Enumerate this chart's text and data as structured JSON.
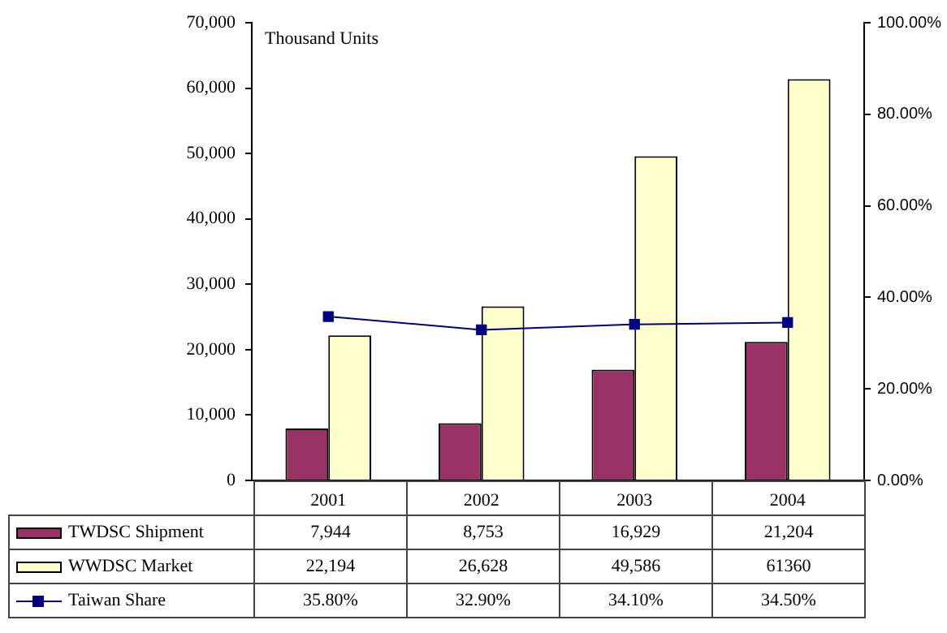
{
  "chart_data": {
    "type": "bar",
    "annotations": [
      "Thousand Units"
    ],
    "categories": [
      "2001",
      "2002",
      "2003",
      "2004"
    ],
    "series": [
      {
        "name": "TWDSC Shipment",
        "color": "#993366",
        "values": [
          7944,
          8753,
          16929,
          21204
        ],
        "value_labels": [
          "7,944",
          "8,753",
          "16,929",
          "21,204"
        ]
      },
      {
        "name": "WWDSC Market",
        "color": "#ffffcc",
        "values": [
          22194,
          26628,
          49586,
          61360
        ],
        "value_labels": [
          "22,194",
          "26,628",
          "49,586",
          "61360"
        ]
      },
      {
        "name": "Taiwan Share",
        "type": "line",
        "axis": "y2",
        "color": "#000080",
        "marker": "square",
        "values": [
          35.8,
          32.9,
          34.1,
          34.5
        ],
        "value_labels": [
          "35.80%",
          "32.90%",
          "34.10%",
          "34.50%"
        ]
      }
    ],
    "ylim": [
      0,
      70000
    ],
    "yticks": [
      0,
      {
        "value": 10000,
        "label": "10,000"
      },
      {
        "value": 20000,
        "label": "20,000"
      },
      {
        "value": 30000,
        "label": "30,000"
      },
      {
        "value": 40000,
        "label": "40,000"
      },
      {
        "value": 50000,
        "label": "50,000"
      },
      {
        "value": 60000,
        "label": "60,000"
      },
      {
        "value": 70000,
        "label": "70,000"
      }
    ],
    "y2lim": [
      0,
      100
    ],
    "y2ticks": [
      {
        "value": 0,
        "label": "0.00%"
      },
      {
        "value": 20,
        "label": "20.00%"
      },
      {
        "value": 40,
        "label": "40.00%"
      },
      {
        "value": 60,
        "label": "60.00%"
      },
      {
        "value": 80,
        "label": "80.00%"
      },
      {
        "value": 100,
        "label": "100.00%"
      }
    ],
    "grid": false,
    "legend": "bottom"
  }
}
